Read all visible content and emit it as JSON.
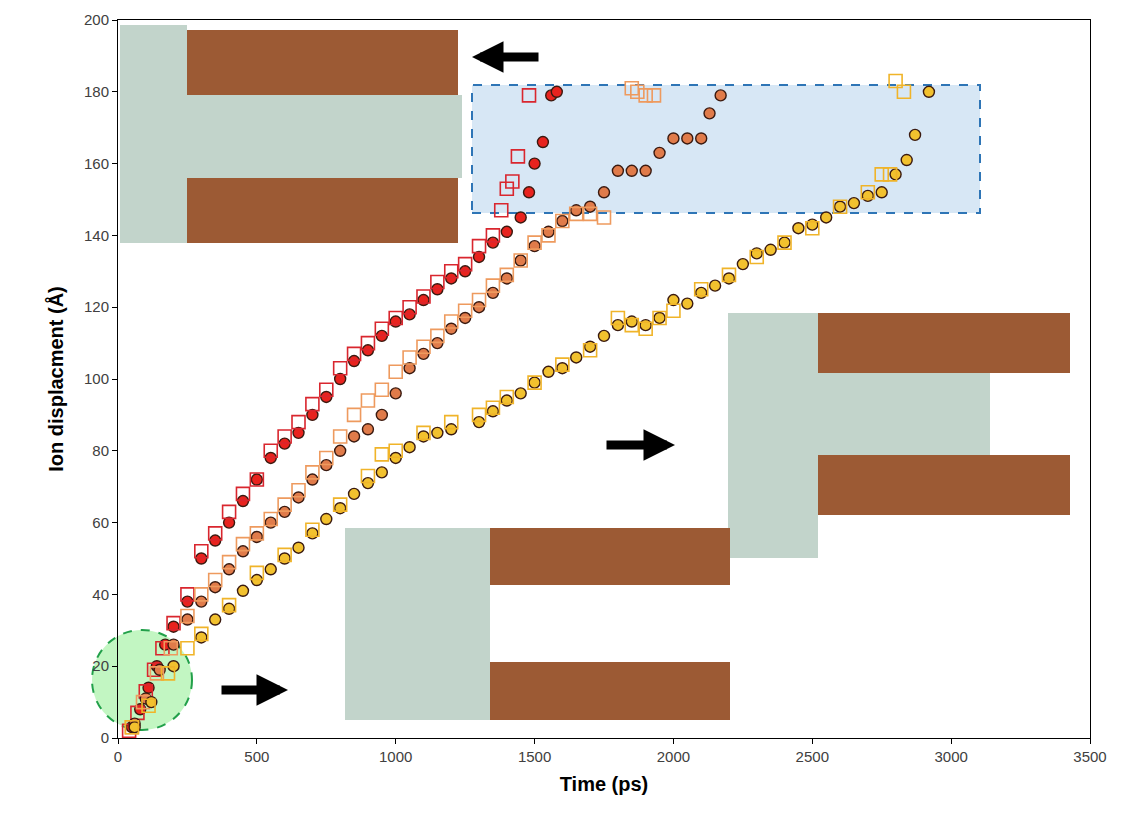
{
  "chart_data": {
    "type": "scatter",
    "x_label": "Time (ps)",
    "y_label": "Ion displacment (Å)",
    "xlim": [
      0,
      3500
    ],
    "xticks": [
      0,
      500,
      1000,
      1500,
      2000,
      2500,
      3000,
      3500
    ],
    "ylim": [
      0,
      200
    ],
    "yticks": [
      0,
      20,
      40,
      60,
      80,
      100,
      120,
      140,
      160,
      180,
      200
    ],
    "grid": false,
    "series": [
      {
        "color": "#e8231e",
        "marker": "circle",
        "x": [
          50,
          80,
          110,
          140,
          170,
          200,
          250,
          300,
          350,
          400,
          450,
          500,
          550,
          600,
          650,
          700,
          750,
          800,
          850,
          900,
          950,
          1000,
          1050,
          1100,
          1150,
          1200,
          1250,
          1300,
          1350,
          1400,
          1450,
          1480,
          1500,
          1530,
          1560,
          1580
        ],
        "values": [
          3,
          8,
          14,
          20,
          26,
          31,
          38,
          50,
          55,
          60,
          66,
          72,
          78,
          82,
          85,
          90,
          95,
          100,
          105,
          108,
          112,
          116,
          118,
          122,
          125,
          128,
          130,
          134,
          138,
          141,
          145,
          152,
          160,
          166,
          179,
          180
        ]
      },
      {
        "color": "#d9262e",
        "marker": "square-open",
        "x": [
          40,
          70,
          100,
          130,
          160,
          200,
          250,
          300,
          350,
          400,
          450,
          500,
          550,
          600,
          650,
          700,
          750,
          800,
          850,
          900,
          950,
          1000,
          1050,
          1100,
          1150,
          1200,
          1250,
          1300,
          1350,
          1380,
          1400,
          1420,
          1440,
          1480
        ],
        "values": [
          2,
          7,
          13,
          19,
          25,
          32,
          40,
          52,
          57,
          63,
          68,
          72,
          80,
          84,
          88,
          93,
          97,
          103,
          107,
          110,
          114,
          117,
          120,
          123,
          127,
          130,
          132,
          137,
          140,
          147,
          153,
          155,
          162,
          179
        ]
      },
      {
        "color": "#e07b4a",
        "marker": "circle",
        "x": [
          60,
          100,
          150,
          200,
          250,
          300,
          350,
          400,
          450,
          500,
          550,
          600,
          650,
          700,
          750,
          800,
          850,
          900,
          950,
          1000,
          1050,
          1100,
          1150,
          1200,
          1250,
          1300,
          1350,
          1400,
          1450,
          1500,
          1550,
          1600,
          1650,
          1700,
          1750,
          1800,
          1850,
          1900,
          1950,
          2000,
          2050,
          2100,
          2130,
          2170
        ],
        "values": [
          4,
          11,
          19,
          26,
          33,
          38,
          42,
          47,
          52,
          56,
          60,
          63,
          67,
          72,
          76,
          80,
          84,
          86,
          90,
          96,
          103,
          107,
          110,
          114,
          117,
          120,
          124,
          128,
          133,
          137,
          141,
          144,
          147,
          148,
          152,
          158,
          158,
          158,
          163,
          167,
          167,
          167,
          174,
          179
        ]
      },
      {
        "color": "#ee9a5e",
        "marker": "square-open",
        "x": [
          50,
          90,
          140,
          190,
          250,
          300,
          350,
          400,
          450,
          500,
          550,
          600,
          650,
          700,
          750,
          800,
          850,
          900,
          950,
          1000,
          1050,
          1100,
          1150,
          1200,
          1250,
          1300,
          1350,
          1400,
          1450,
          1500,
          1550,
          1600,
          1650,
          1700,
          1750,
          1850,
          1870,
          1900,
          1930
        ],
        "values": [
          3,
          10,
          18,
          25,
          34,
          40,
          44,
          49,
          54,
          57,
          61,
          65,
          69,
          74,
          78,
          84,
          90,
          94,
          97,
          102,
          106,
          109,
          112,
          116,
          119,
          122,
          126,
          129,
          133,
          138,
          140,
          144,
          146,
          146,
          145,
          181,
          180,
          179,
          179
        ]
      },
      {
        "color": "#f2c12e",
        "marker": "circle",
        "x": [
          60,
          120,
          200,
          300,
          350,
          400,
          450,
          500,
          550,
          600,
          650,
          700,
          750,
          800,
          850,
          900,
          950,
          1000,
          1050,
          1100,
          1150,
          1200,
          1300,
          1350,
          1400,
          1450,
          1500,
          1550,
          1600,
          1650,
          1700,
          1750,
          1800,
          1850,
          1900,
          1950,
          2000,
          2050,
          2100,
          2150,
          2200,
          2250,
          2300,
          2350,
          2400,
          2450,
          2500,
          2550,
          2600,
          2650,
          2700,
          2750,
          2800,
          2840,
          2870,
          2920
        ],
        "values": [
          3,
          10,
          20,
          28,
          33,
          36,
          41,
          44,
          47,
          50,
          53,
          57,
          61,
          64,
          68,
          71,
          74,
          78,
          81,
          84,
          85,
          86,
          88,
          91,
          94,
          96,
          99,
          102,
          103,
          106,
          109,
          112,
          115,
          116,
          115,
          117,
          122,
          121,
          124,
          126,
          128,
          132,
          135,
          136,
          138,
          142,
          143,
          145,
          148,
          149,
          151,
          152,
          157,
          161,
          168,
          180
        ]
      },
      {
        "color": "#f0b429",
        "marker": "square-open",
        "x": [
          50,
          110,
          180,
          250,
          300,
          400,
          500,
          600,
          700,
          800,
          900,
          950,
          1000,
          1100,
          1200,
          1300,
          1350,
          1400,
          1500,
          1600,
          1700,
          1800,
          1850,
          1900,
          1950,
          2000,
          2100,
          2200,
          2300,
          2400,
          2500,
          2600,
          2700,
          2750,
          2780,
          2800,
          2830
        ],
        "values": [
          3,
          9,
          18,
          25,
          29,
          37,
          46,
          51,
          58,
          65,
          73,
          79,
          80,
          85,
          88,
          90,
          92,
          95,
          99,
          104,
          108,
          117,
          115,
          114,
          117,
          119,
          125,
          129,
          134,
          138,
          142,
          148,
          152,
          157,
          157,
          183,
          180
        ]
      }
    ]
  }
}
